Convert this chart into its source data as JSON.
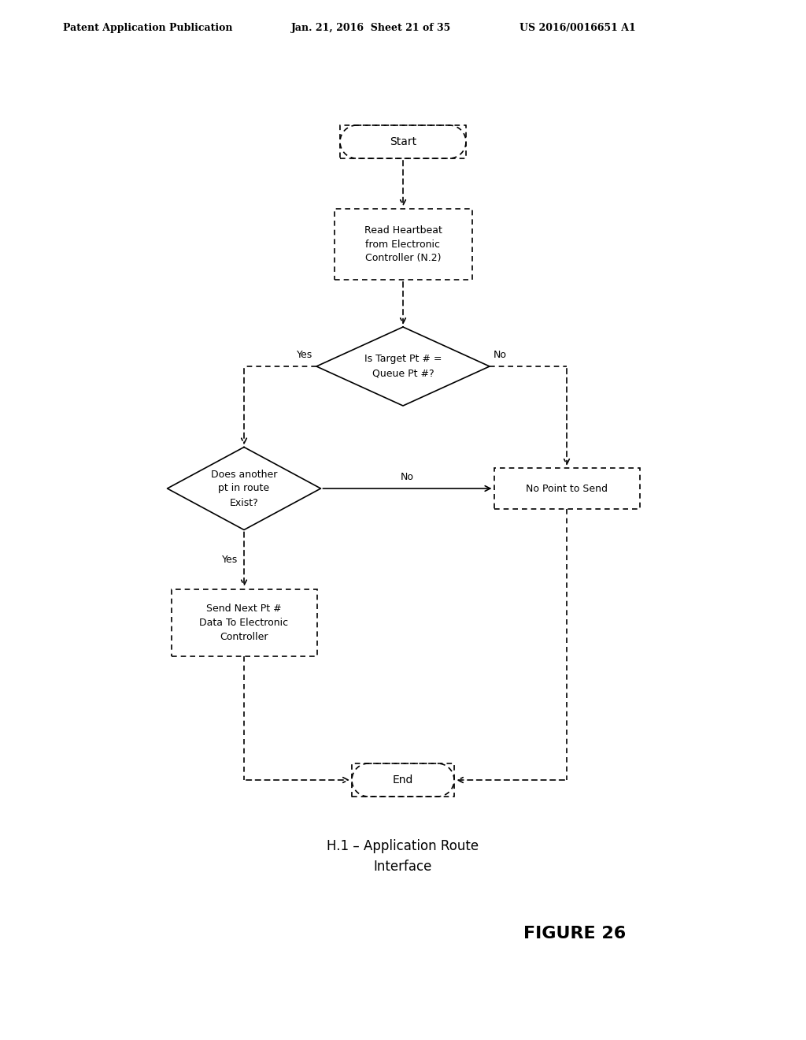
{
  "bg_color": "#ffffff",
  "header_left": "Patent Application Publication",
  "header_mid": "Jan. 21, 2016  Sheet 21 of 35",
  "header_right": "US 2016/0016651 A1",
  "figure_label": "FIGURE 26",
  "caption_line1": "H.1 – Application Route",
  "caption_line2": "Interface",
  "start_label": "Start",
  "readhb_label": "Read Heartbeat\nfrom Electronic\nController (N.2)",
  "dia1_label": "Is Target Pt # =\nQueue Pt #?",
  "dia2_label": "Does another\npt in route\nExist?",
  "nopoint_label": "No Point to Send",
  "sendnext_label": "Send Next Pt #\nData To Electronic\nController",
  "end_label": "End",
  "yes_label": "Yes",
  "no_label": "No"
}
